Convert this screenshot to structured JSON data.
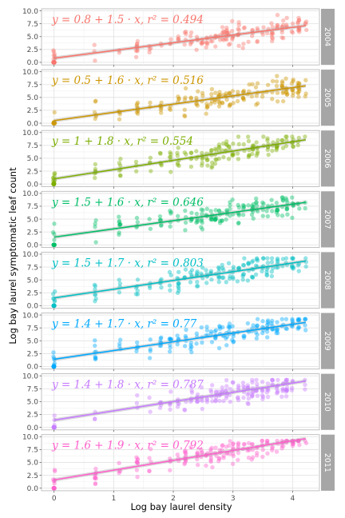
{
  "chart_data": {
    "type": "scatter",
    "xlabel": "Log bay laurel density",
    "ylabel": "Log bay laurel symptomatic leaf count",
    "xlim": [
      -0.21,
      4.45
    ],
    "ylim": [
      -0.5,
      10.4
    ],
    "x_ticks": [
      "0",
      "1",
      "2",
      "3",
      "4"
    ],
    "y_ticks": [
      "0.0",
      "2.5",
      "5.0",
      "7.5",
      "10.0"
    ],
    "grid": true,
    "legend": "none",
    "facet_strip": "right",
    "panels": [
      {
        "strip": "2004",
        "color": "#F8766D",
        "intercept": 0.8,
        "slope": 1.5,
        "equation": "y = 0.8 + 1.5 · x, r² = 0.494"
      },
      {
        "strip": "2005",
        "color": "#CD9600",
        "intercept": 0.5,
        "slope": 1.6,
        "equation": "y = 0.5 + 1.6 · x, r² = 0.516"
      },
      {
        "strip": "2006",
        "color": "#7CAE00",
        "intercept": 1.0,
        "slope": 1.8,
        "equation": "y = 1 + 1.8 · x, r² = 0.554"
      },
      {
        "strip": "2007",
        "color": "#00BE67",
        "intercept": 1.5,
        "slope": 1.6,
        "equation": "y = 1.5 + 1.6 · x, r² = 0.646"
      },
      {
        "strip": "2008",
        "color": "#00BFC4",
        "intercept": 1.5,
        "slope": 1.7,
        "equation": "y = 1.5 + 1.7 · x, r² = 0.803"
      },
      {
        "strip": "2009",
        "color": "#00A9FF",
        "intercept": 1.4,
        "slope": 1.7,
        "equation": "y = 1.4 + 1.7 · x, r² = 0.77"
      },
      {
        "strip": "2010",
        "color": "#C77CFF",
        "intercept": 1.4,
        "slope": 1.8,
        "equation": "y = 1.4 + 1.8 · x, r² = 0.787"
      },
      {
        "strip": "2011",
        "color": "#FF61CC",
        "intercept": 1.6,
        "slope": 1.9,
        "equation": "y = 1.6 + 1.9 · x, r² = 0.792"
      }
    ]
  }
}
